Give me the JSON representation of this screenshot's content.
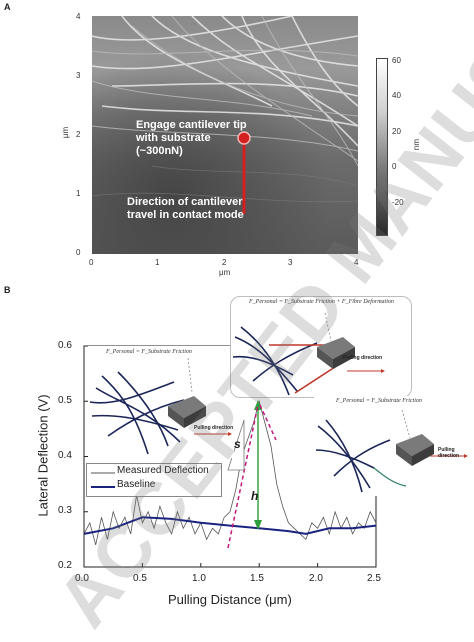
{
  "panel_a": {
    "letter": "A",
    "x_ticks": [
      "0",
      "1",
      "2",
      "3",
      "4"
    ],
    "y_ticks": [
      "0",
      "1",
      "2",
      "3",
      "4"
    ],
    "x_unit": "μm",
    "y_unit": "μm",
    "colorbar_ticks": [
      "60",
      "40",
      "20",
      "0",
      "-20"
    ],
    "colorbar_unit": "nm",
    "note_engage": [
      "Engage cantilever tip",
      "with substrate",
      "(~300nN)"
    ],
    "note_direction": [
      "Direction of cantilever",
      "travel in contact mode"
    ],
    "marker_color": "#d42020"
  },
  "panel_b": {
    "letter": "B",
    "legend": {
      "measured": "Measured Deflection",
      "baseline": "Baseline"
    },
    "h_label": "h",
    "s_label": "s",
    "insets": [
      {
        "formula": "F_Personal = F_Substrate Friction",
        "pull": "Pulling direction"
      },
      {
        "formula": "F_Personal = F_Substrate Friction + F_Fibre Deformation",
        "pull": "Pulling direction"
      },
      {
        "formula": "F_Personal = F_Substrate Friction",
        "pull": "Pulling direction"
      }
    ]
  },
  "chart_data": {
    "type": "line",
    "xlabel": "Pulling Distance (μm)",
    "ylabel": "Lateral Deflection (V)",
    "xlim": [
      0.0,
      2.5
    ],
    "ylim": [
      0.2,
      0.6
    ],
    "x_ticks": [
      "0.0",
      "0.5",
      "1.0",
      "1.5",
      "2.0",
      "2.5"
    ],
    "y_ticks": [
      "0.2",
      "0.3",
      "0.4",
      "0.5",
      "0.6"
    ],
    "legend_position": "center-left",
    "series": [
      {
        "name": "Measured Deflection",
        "color": "#555555",
        "x": [
          0.0,
          0.05,
          0.1,
          0.15,
          0.2,
          0.25,
          0.3,
          0.35,
          0.4,
          0.45,
          0.5,
          0.55,
          0.6,
          0.65,
          0.7,
          0.75,
          0.8,
          0.85,
          0.9,
          0.95,
          1.0,
          1.05,
          1.1,
          1.15,
          1.2,
          1.25,
          1.3,
          1.35,
          1.4,
          1.45,
          1.5,
          1.55,
          1.6,
          1.65,
          1.7,
          1.75,
          1.8,
          1.85,
          1.9,
          1.95,
          2.0,
          2.05,
          2.1,
          2.15,
          2.2,
          2.25,
          2.3,
          2.35,
          2.4,
          2.45,
          2.5
        ],
        "y": [
          0.26,
          0.28,
          0.24,
          0.29,
          0.25,
          0.3,
          0.27,
          0.29,
          0.26,
          0.33,
          0.28,
          0.3,
          0.27,
          0.31,
          0.28,
          0.26,
          0.3,
          0.27,
          0.29,
          0.26,
          0.28,
          0.25,
          0.27,
          0.26,
          0.29,
          0.3,
          0.34,
          0.4,
          0.43,
          0.46,
          0.5,
          0.46,
          0.42,
          0.35,
          0.31,
          0.28,
          0.27,
          0.26,
          0.25,
          0.28,
          0.27,
          0.29,
          0.26,
          0.3,
          0.27,
          0.29,
          0.26,
          0.28,
          0.27,
          0.3,
          0.28
        ]
      },
      {
        "name": "Baseline",
        "color": "#1a237e",
        "x": [
          0.0,
          0.25,
          0.5,
          0.75,
          1.0,
          1.25,
          1.5,
          1.75,
          1.9,
          2.1,
          2.3,
          2.5
        ],
        "y": [
          0.26,
          0.27,
          0.29,
          0.287,
          0.28,
          0.275,
          0.27,
          0.265,
          0.26,
          0.27,
          0.27,
          0.275
        ]
      }
    ]
  }
}
